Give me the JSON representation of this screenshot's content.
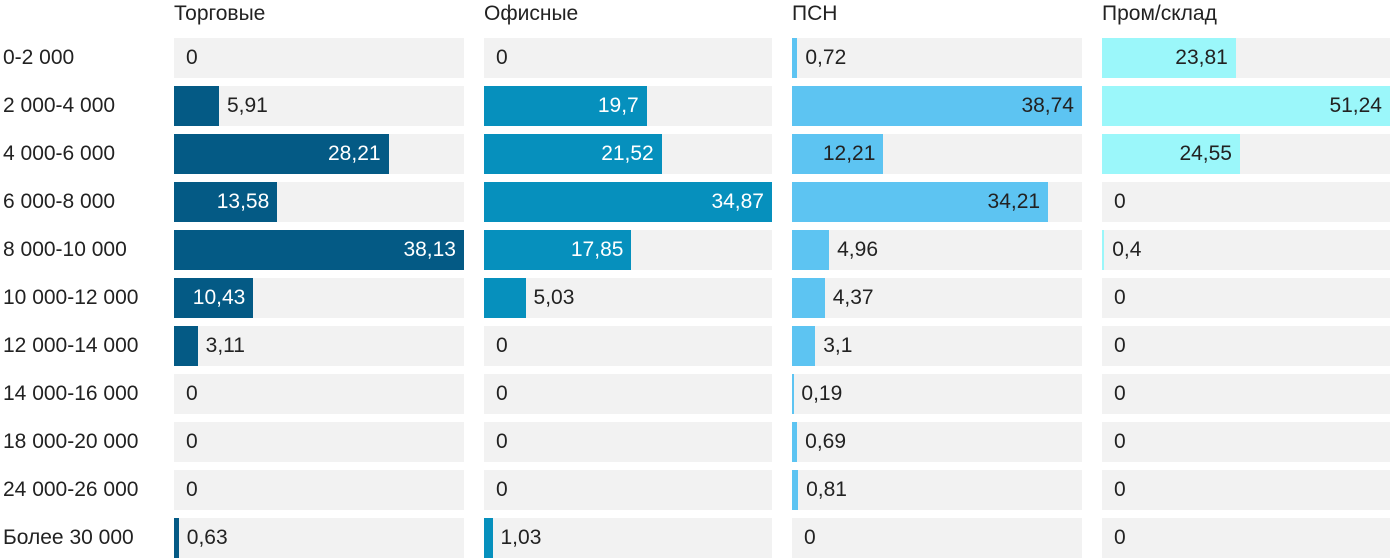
{
  "chart_data": {
    "type": "bar",
    "orientation": "horizontal",
    "layout": "small-multiples",
    "categories": [
      "0-2 000",
      "2 000-4 000",
      "4 000-6 000",
      "6 000-8 000",
      "8 000-10 000",
      "10 000-12 000",
      "12 000-14 000",
      "14 000-16 000",
      "18 000-20 000",
      "24 000-26 000",
      "Более 30 000"
    ],
    "series": [
      {
        "name": "Торговые",
        "color": "#045a85",
        "max": 38.13,
        "values": [
          0,
          5.91,
          28.21,
          13.58,
          38.13,
          10.43,
          3.11,
          0,
          0,
          0,
          0.63
        ],
        "labels": [
          "0",
          "5,91",
          "28,21",
          "13,58",
          "38,13",
          "10,43",
          "3,11",
          "0",
          "0",
          "0",
          "0,63"
        ],
        "label_color_inside": "#ffffff"
      },
      {
        "name": "Офисные",
        "color": "#0690bd",
        "max": 34.87,
        "values": [
          0,
          19.7,
          21.52,
          34.87,
          17.85,
          5.03,
          0,
          0,
          0,
          0,
          1.03
        ],
        "labels": [
          "0",
          "19,7",
          "21,52",
          "34,87",
          "17,85",
          "5,03",
          "0",
          "0",
          "0",
          "0",
          "1,03"
        ],
        "label_color_inside": "#ffffff"
      },
      {
        "name": "ПСН",
        "color": "#5dc4f2",
        "max": 38.74,
        "values": [
          0.72,
          38.74,
          12.21,
          34.21,
          4.96,
          4.37,
          3.1,
          0.19,
          0.69,
          0.81,
          0
        ],
        "labels": [
          "0,72",
          "38,74",
          "12,21",
          "34,21",
          "4,96",
          "4,37",
          "3,1",
          "0,19",
          "0,69",
          "0,81",
          "0"
        ],
        "label_color_inside": "#222222"
      },
      {
        "name": "Пром/склад",
        "color": "#9bf7fa",
        "max": 51.24,
        "values": [
          23.81,
          51.24,
          24.55,
          0,
          0.4,
          0,
          0,
          0,
          0,
          0,
          0
        ],
        "labels": [
          "23,81",
          "51,24",
          "24,55",
          "0",
          "0,4",
          "0",
          "0",
          "0",
          "0",
          "0",
          "0"
        ],
        "label_color_inside": "#222222"
      }
    ],
    "title": "",
    "xlabel": "",
    "ylabel": "",
    "grid": false,
    "legend": "none"
  }
}
